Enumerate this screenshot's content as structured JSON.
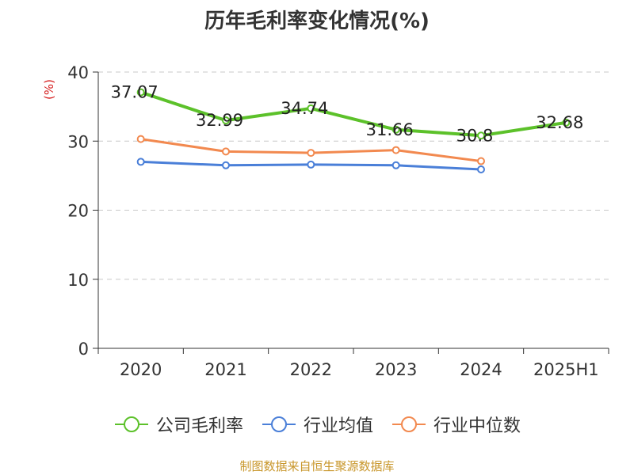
{
  "title": "历年毛利率变化情况(%)",
  "unit_label": "(%)",
  "source": "制图数据来自恒生聚源数据库",
  "chart_data": {
    "type": "line",
    "title": "历年毛利率变化情况(%)",
    "ylabel": "(%)",
    "xlabel": "",
    "categories": [
      "2020",
      "2021",
      "2022",
      "2023",
      "2024",
      "2025H1"
    ],
    "ylim": [
      0,
      40
    ],
    "yticks": [
      0,
      10,
      20,
      30,
      40
    ],
    "grid": true,
    "legend_position": "bottom",
    "series": [
      {
        "name": "公司毛利率",
        "values": [
          37.07,
          32.99,
          34.74,
          31.66,
          30.8,
          32.68
        ],
        "labels": [
          "37.07",
          "32.99",
          "34.74",
          "31.66",
          "30.8",
          "32.68"
        ],
        "color": "#5cc12a"
      },
      {
        "name": "行业均值",
        "values": [
          27.0,
          26.5,
          26.6,
          26.5,
          25.9,
          null
        ],
        "color": "#4a7fd8"
      },
      {
        "name": "行业中位数",
        "values": [
          30.3,
          28.5,
          28.3,
          28.7,
          27.1,
          null
        ],
        "color": "#f2894f"
      }
    ]
  }
}
